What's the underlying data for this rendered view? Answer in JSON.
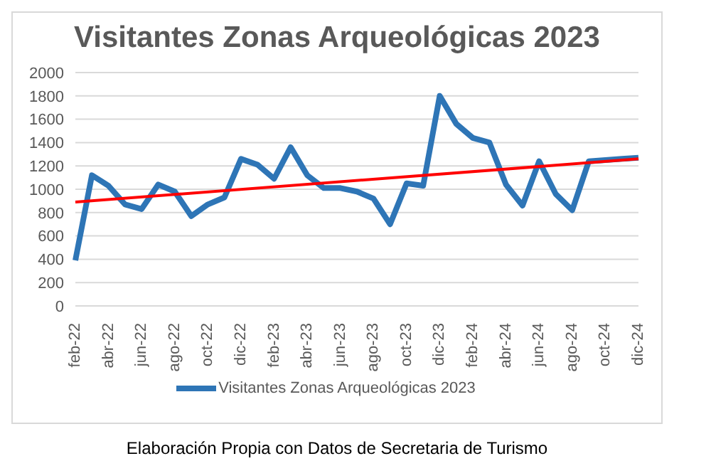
{
  "chart_data": {
    "type": "line",
    "title": "Visitantes Zonas Arqueológicas 2023",
    "categories": [
      "feb-22",
      null,
      "abr-22",
      null,
      "jun-22",
      null,
      "ago-22",
      null,
      "oct-22",
      null,
      "dic-22",
      null,
      "feb-23",
      null,
      "abr-23",
      null,
      "jun-23",
      null,
      "ago-23",
      null,
      "oct-23",
      null,
      "dic-23",
      null,
      "feb-24",
      null,
      "abr-24",
      null,
      "jun-24",
      null,
      "ago-24",
      null,
      "oct-24",
      null,
      "dic-24"
    ],
    "series": [
      {
        "name": "Visitantes Zonas Arqueológicas 2023",
        "color": "#2e75b6",
        "values": [
          390,
          1120,
          1030,
          870,
          830,
          1040,
          980,
          770,
          870,
          930,
          1260,
          1210,
          1090,
          1360,
          1120,
          1010,
          1010,
          980,
          920,
          700,
          1050,
          1030,
          1800,
          1560,
          1440,
          1400,
          1040,
          860,
          1240,
          960,
          820,
          1240,
          1250,
          1260,
          1270
        ]
      },
      {
        "type": "line",
        "color": "#ff0000",
        "x": [
          "feb-22",
          "dic-24"
        ],
        "values": [
          890,
          1260
        ]
      }
    ],
    "ylim": [
      0,
      2000
    ],
    "yticks": [
      0,
      200,
      400,
      600,
      800,
      1000,
      1200,
      1400,
      1600,
      1800,
      2000
    ],
    "grid": "y",
    "legend": "bottom",
    "marker": "none",
    "line_style": "solid",
    "annotations": [
      "Elaboración Propia con Datos de Secretaria de Turismo"
    ]
  }
}
